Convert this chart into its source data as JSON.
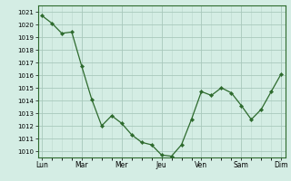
{
  "x": [
    0,
    0.5,
    1,
    1.5,
    2,
    2.5,
    3,
    3.5,
    4,
    4.5,
    5,
    5.5,
    6,
    6.5,
    7,
    7.5,
    8,
    8.5,
    9,
    9.5,
    10,
    10.5,
    11,
    11.5,
    12
  ],
  "y": [
    1020.7,
    1020.1,
    1019.3,
    1019.4,
    1016.7,
    1014.1,
    1012.0,
    1012.8,
    1012.2,
    1011.3,
    1010.7,
    1010.5,
    1009.7,
    1009.6,
    1010.5,
    1012.5,
    1014.7,
    1014.4,
    1015.0,
    1014.6,
    1013.6,
    1012.5,
    1013.3,
    1014.7,
    1016.1
  ],
  "xtick_positions": [
    0,
    1,
    2,
    3,
    4,
    5,
    6,
    7,
    8,
    9,
    10,
    11,
    12
  ],
  "xtick_labels": [
    "Lun",
    "",
    "Mar",
    "",
    "Mer",
    "",
    "Jeu",
    "",
    "Ven",
    "",
    "Sam",
    "",
    "Dim"
  ],
  "ylim": [
    1009.5,
    1021.5
  ],
  "ytick_min": 1010,
  "ytick_max": 1021,
  "ytick_step": 1,
  "line_color": "#2d6a2d",
  "marker_color": "#2d6a2d",
  "bg_color": "#d4ede4",
  "grid_major_color": "#a8c8bc",
  "grid_minor_color": "#bcd8ce",
  "spine_color": "#2d6a2d"
}
